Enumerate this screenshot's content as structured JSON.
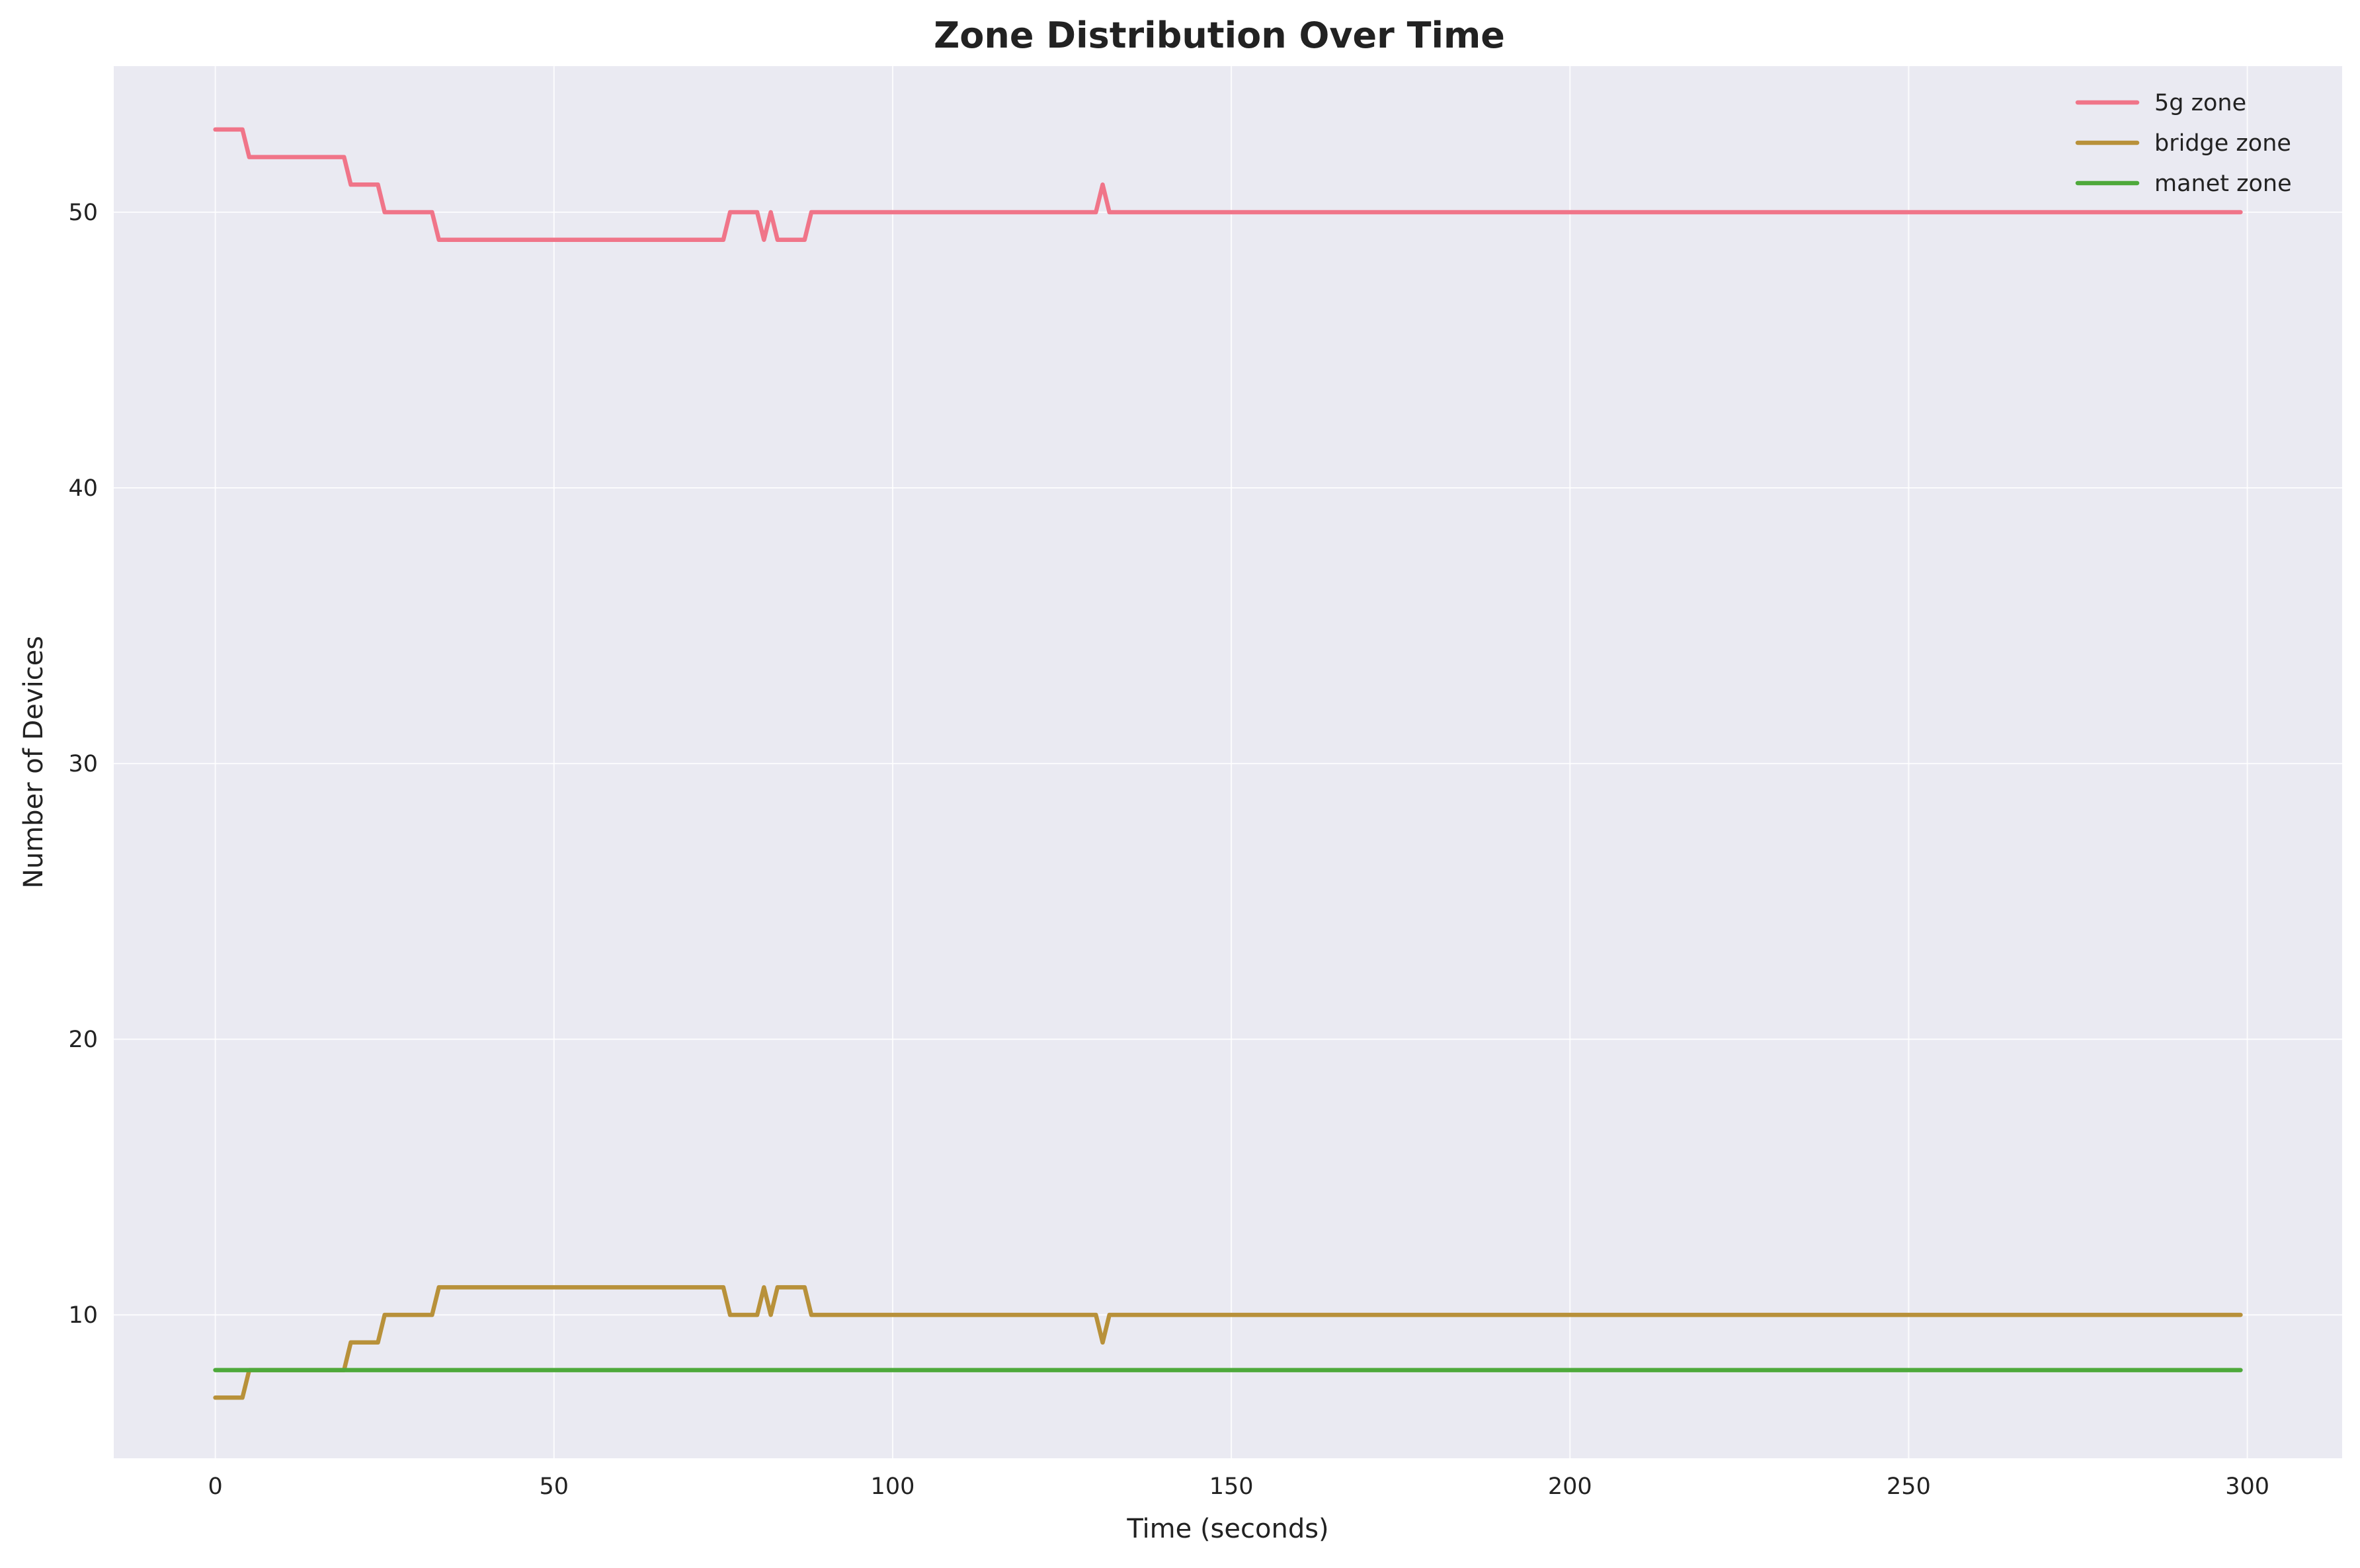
{
  "chart_data": {
    "type": "line",
    "title": "Zone Distribution Over Time",
    "xlabel": "Time (seconds)",
    "ylabel": "Number of Devices",
    "xlim": [
      -15,
      314
    ],
    "ylim": [
      4.8,
      55.3
    ],
    "xticks": [
      0,
      50,
      100,
      150,
      200,
      250,
      300
    ],
    "yticks": [
      10,
      20,
      30,
      40,
      50
    ],
    "grid": true,
    "legend_position": "top-right",
    "background_color": "#eaeaf2",
    "series": [
      {
        "name": "5g zone",
        "color": "#f07589",
        "x": [
          0,
          4,
          5,
          19,
          20,
          24,
          25,
          32,
          33,
          75,
          76,
          80,
          81,
          82,
          83,
          87,
          88,
          130,
          131,
          132,
          299
        ],
        "y": [
          53,
          53,
          52,
          52,
          51,
          51,
          50,
          50,
          49,
          49,
          50,
          50,
          49,
          50,
          49,
          49,
          50,
          50,
          51,
          50,
          50
        ]
      },
      {
        "name": "bridge zone",
        "color": "#b8913a",
        "x": [
          0,
          4,
          5,
          19,
          20,
          24,
          25,
          32,
          33,
          75,
          76,
          80,
          81,
          82,
          83,
          87,
          88,
          130,
          131,
          132,
          299
        ],
        "y": [
          7,
          7,
          8,
          8,
          9,
          9,
          10,
          10,
          11,
          11,
          10,
          10,
          11,
          10,
          11,
          11,
          10,
          10,
          9,
          10,
          10
        ]
      },
      {
        "name": "manet zone",
        "color": "#4ea93b",
        "x": [
          0,
          299
        ],
        "y": [
          8,
          8
        ]
      }
    ]
  }
}
